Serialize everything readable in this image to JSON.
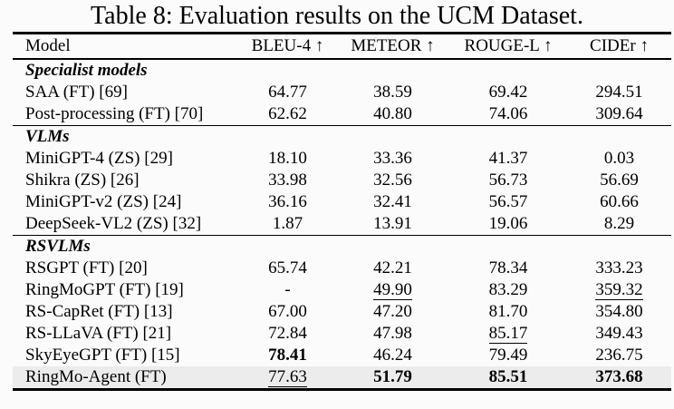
{
  "title": "Table 8: Evaluation results on the UCM Dataset.",
  "columns": {
    "model": "Model",
    "bleu4": "BLEU-4 ↑",
    "meteor": "METEOR ↑",
    "rougeL": "ROUGE-L ↑",
    "cider": "CIDEr ↑"
  },
  "sections": [
    {
      "label": "Specialist models",
      "rows": [
        {
          "model": "SAA (FT) [69]",
          "bleu4": "64.77",
          "meteor": "38.59",
          "rougeL": "69.42",
          "cider": "294.51"
        },
        {
          "model": "Post-processing (FT) [70]",
          "bleu4": "62.62",
          "meteor": "40.80",
          "rougeL": "74.06",
          "cider": "309.64"
        }
      ]
    },
    {
      "label": "VLMs",
      "rows": [
        {
          "model": "MiniGPT-4 (ZS) [29]",
          "bleu4": "18.10",
          "meteor": "33.36",
          "rougeL": "41.37",
          "cider": "0.03"
        },
        {
          "model": "Shikra (ZS) [26]",
          "bleu4": "33.98",
          "meteor": "32.56",
          "rougeL": "56.73",
          "cider": "56.69"
        },
        {
          "model": "MiniGPT-v2 (ZS) [24]",
          "bleu4": "36.16",
          "meteor": "32.41",
          "rougeL": "56.57",
          "cider": "60.66"
        },
        {
          "model": "DeepSeek-VL2 (ZS) [32]",
          "bleu4": "1.87",
          "meteor": "13.91",
          "rougeL": "19.06",
          "cider": "8.29"
        }
      ]
    },
    {
      "label": "RSVLMs",
      "rows": [
        {
          "model": "RSGPT (FT) [20]",
          "bleu4": "65.74",
          "meteor": "42.21",
          "rougeL": "78.34",
          "cider": "333.23"
        },
        {
          "model": "RingMoGPT (FT) [19]",
          "bleu4": "-",
          "meteor": "49.90",
          "rougeL": "83.29",
          "cider": "359.32"
        },
        {
          "model": "RS-CapRet (FT) [13]",
          "bleu4": "67.00",
          "meteor": "47.20",
          "rougeL": "81.70",
          "cider": "354.80"
        },
        {
          "model": "RS-LLaVA (FT) [21]",
          "bleu4": "72.84",
          "meteor": "47.98",
          "rougeL": "85.17",
          "cider": "349.43"
        },
        {
          "model": "SkyEyeGPT (FT) [15]",
          "bleu4": "78.41",
          "meteor": "46.24",
          "rougeL": "79.49",
          "cider": "236.75"
        },
        {
          "model": "RingMo-Agent (FT)",
          "bleu4": "77.63",
          "meteor": "51.79",
          "rougeL": "85.51",
          "cider": "373.68"
        }
      ]
    }
  ],
  "emphasis": {
    "bold_best_values": [
      "78.41",
      "51.79",
      "85.51",
      "373.68"
    ],
    "underlined_second_best_values": [
      "49.90",
      "359.32",
      "85.17",
      "77.63"
    ],
    "highlighted_row": "RingMo-Agent (FT)"
  },
  "colors": {
    "background": "#fbfbfb",
    "text": "#000000",
    "highlight_row": "#ececec"
  }
}
